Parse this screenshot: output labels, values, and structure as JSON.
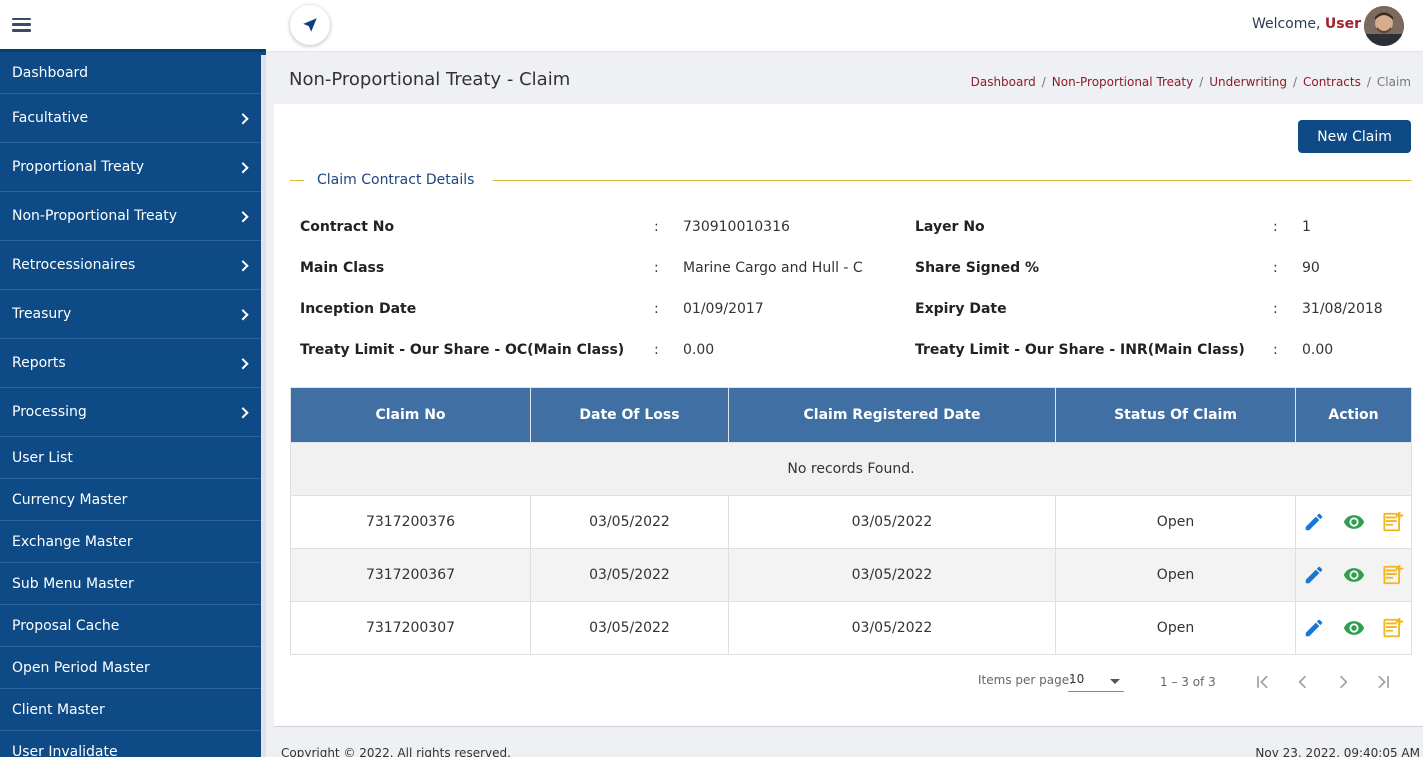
{
  "sidebar": {
    "items": [
      {
        "label": "Dashboard",
        "has_children": false
      },
      {
        "label": "Facultative",
        "has_children": true
      },
      {
        "label": "Proportional Treaty",
        "has_children": true
      },
      {
        "label": "Non-Proportional Treaty",
        "has_children": true
      },
      {
        "label": "Retrocessionaires",
        "has_children": true
      },
      {
        "label": "Treasury",
        "has_children": true
      },
      {
        "label": "Reports",
        "has_children": true
      },
      {
        "label": "Processing",
        "has_children": true
      },
      {
        "label": "User List",
        "has_children": false
      },
      {
        "label": "Currency Master",
        "has_children": false
      },
      {
        "label": "Exchange Master",
        "has_children": false
      },
      {
        "label": "Sub Menu Master",
        "has_children": false
      },
      {
        "label": "Proposal Cache",
        "has_children": false
      },
      {
        "label": "Open Period Master",
        "has_children": false
      },
      {
        "label": "Client Master",
        "has_children": false
      },
      {
        "label": "User Invalidate",
        "has_children": false
      }
    ]
  },
  "header": {
    "welcome_text": "Welcome,",
    "user_name": "User"
  },
  "page": {
    "title": "Non-Proportional Treaty - Claim",
    "breadcrumb": [
      "Dashboard",
      "Non-Proportional Treaty",
      "Underwriting",
      "Contracts",
      "Claim"
    ]
  },
  "actions": {
    "new_claim_label": "New Claim"
  },
  "section": {
    "title": "Claim Contract Details"
  },
  "details": {
    "colon": ":",
    "rows": [
      {
        "left_label": "Contract No",
        "left_value": "730910010316",
        "right_label": "Layer No",
        "right_value": "1"
      },
      {
        "left_label": "Main Class",
        "left_value": "Marine Cargo and Hull - C",
        "right_label": "Share Signed %",
        "right_value": "90"
      },
      {
        "left_label": "Inception Date",
        "left_value": "01/09/2017",
        "right_label": "Expiry Date",
        "right_value": "31/08/2018"
      },
      {
        "left_label": "Treaty Limit - Our Share - OC(Main Class)",
        "left_value": "0.00",
        "right_label": "Treaty Limit - Our Share - INR(Main Class)",
        "right_value": "0.00"
      }
    ]
  },
  "table": {
    "columns": [
      "Claim No",
      "Date Of Loss",
      "Claim Registered Date",
      "Status Of Claim",
      "Action"
    ],
    "empty_message": "No records Found.",
    "rows": [
      {
        "claim_no": "7317200376",
        "date_of_loss": "03/05/2022",
        "registered_date": "03/05/2022",
        "status": "Open"
      },
      {
        "claim_no": "7317200367",
        "date_of_loss": "03/05/2022",
        "registered_date": "03/05/2022",
        "status": "Open"
      },
      {
        "claim_no": "7317200307",
        "date_of_loss": "03/05/2022",
        "registered_date": "03/05/2022",
        "status": "Open"
      }
    ],
    "action_icons": [
      "edit-icon",
      "view-icon",
      "add-note-icon"
    ]
  },
  "paginator": {
    "items_per_page_label": "Items per page:",
    "items_per_page": "10",
    "range_label": "1 – 3 of 3"
  },
  "footer": {
    "copyright": "Copyright © 2022. All rights reserved.",
    "timestamp": "Nov 23, 2022, 09:40:05 AM"
  },
  "colors": {
    "sidebar_bg": "#0d4a86",
    "table_header_bg": "#3f6fa3",
    "accent_red": "#a0232b",
    "edit_icon": "#1976d2",
    "view_icon": "#2e9e4f",
    "note_icon": "#f2b51d",
    "section_line": "#e0b83c"
  }
}
